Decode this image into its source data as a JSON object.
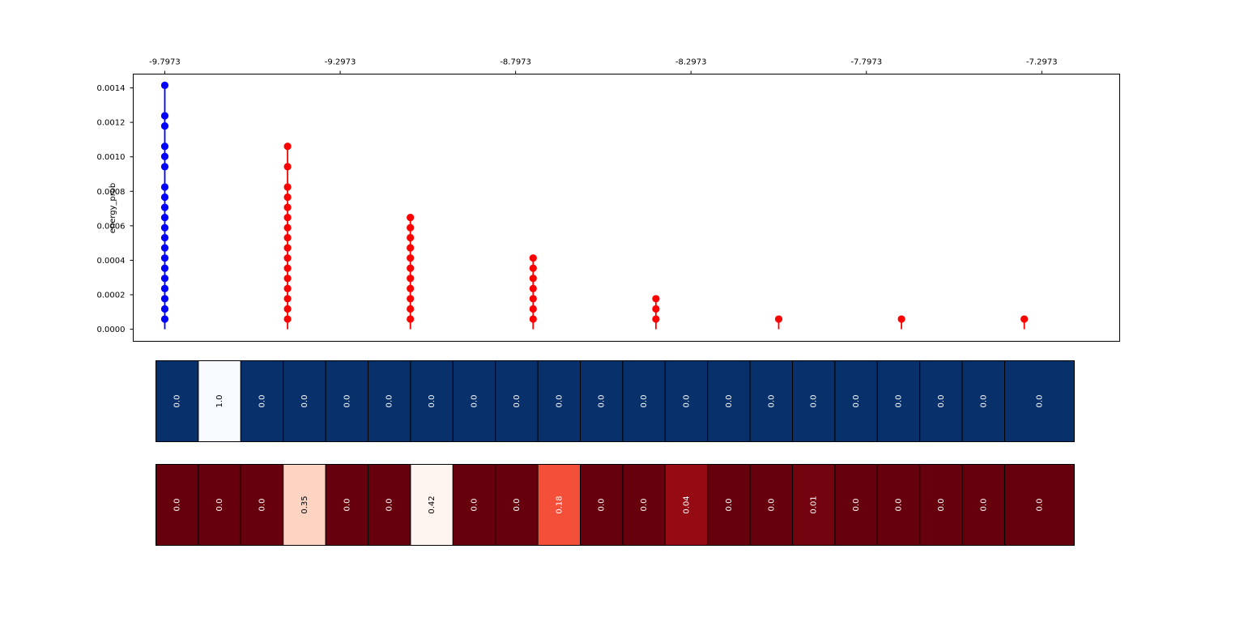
{
  "chart_data": [
    {
      "type": "scatter",
      "subtype": "stem",
      "ylabel": "energy_prob",
      "top_tick_labels": [
        "-9.7973",
        "-9.2973",
        "-8.7973",
        "-8.2973",
        "-7.7973",
        "-7.2973"
      ],
      "y_tick_labels": [
        "0.0000",
        "0.0002",
        "0.0004",
        "0.0006",
        "0.0008",
        "0.0010",
        "0.0012",
        "0.0014"
      ],
      "y_ticks": [
        0,
        0.0002,
        0.0004,
        0.0006,
        0.0008,
        0.001,
        0.0012,
        0.0014
      ],
      "x_ticks": [
        -9.7973,
        -9.2973,
        -8.7973,
        -8.2973,
        -7.7973,
        -7.2973
      ],
      "xlim": [
        -9.8873,
        -7.0753
      ],
      "ylim": [
        -7e-05,
        0.00148
      ],
      "series": [
        {
          "name": "stem-0",
          "color": "#0000ff",
          "x": -9.7973,
          "values": [
            5.89e-05,
            0.000118,
            0.000177,
            0.000236,
            0.000295,
            0.000354,
            0.000413,
            0.000472,
            0.000531,
            0.000589,
            0.000648,
            0.000707,
            0.000766,
            0.000825,
            0.000943,
            0.001002,
            0.001061,
            0.001179,
            0.001238,
            0.001415
          ]
        },
        {
          "name": "stem-1",
          "color": "#ff0000",
          "x": -9.4473,
          "values": [
            5.89e-05,
            0.000118,
            0.000177,
            0.000236,
            0.000295,
            0.000354,
            0.000413,
            0.000472,
            0.000531,
            0.000589,
            0.000648,
            0.000707,
            0.000766,
            0.000825,
            0.000943,
            0.001061
          ]
        },
        {
          "name": "stem-2",
          "color": "#ff0000",
          "x": -9.0973,
          "values": [
            5.89e-05,
            0.000118,
            0.000177,
            0.000236,
            0.000295,
            0.000354,
            0.000413,
            0.000472,
            0.000531,
            0.000589,
            0.000648
          ]
        },
        {
          "name": "stem-3",
          "color": "#ff0000",
          "x": -8.7473,
          "values": [
            5.89e-05,
            0.000118,
            0.000177,
            0.000236,
            0.000295,
            0.000354,
            0.000413
          ]
        },
        {
          "name": "stem-4",
          "color": "#ff0000",
          "x": -8.3973,
          "values": [
            5.89e-05,
            0.000118,
            0.000177
          ]
        },
        {
          "name": "stem-5",
          "color": "#ff0000",
          "x": -8.0473,
          "values": [
            5.89e-05
          ]
        },
        {
          "name": "stem-6",
          "color": "#ff0000",
          "x": -7.6973,
          "values": [
            5.89e-05
          ]
        },
        {
          "name": "stem-7",
          "color": "#ff0000",
          "x": -7.3473,
          "values": [
            5.89e-05
          ]
        }
      ]
    },
    {
      "type": "heatmap",
      "colormap": "Blues_r",
      "values": [
        0.0,
        1.0,
        0.0,
        0.0,
        0.0,
        0.0,
        0.0,
        0.0,
        0.0,
        0.0,
        0.0,
        0.0,
        0.0,
        0.0,
        0.0,
        0.0,
        0.0,
        0.0,
        0.0,
        0.0,
        0.0
      ],
      "labels": [
        "0.0",
        "1.0",
        "0.0",
        "0.0",
        "0.0",
        "0.0",
        "0.0",
        "0.0",
        "0.0",
        "0.0",
        "0.0",
        "0.0",
        "0.0",
        "0.0",
        "0.0",
        "0.0",
        "0.0",
        "0.0",
        "0.0",
        "0.0",
        "0.0"
      ]
    },
    {
      "type": "heatmap",
      "colormap": "Reds_r",
      "values": [
        0.0,
        0.0,
        0.0,
        0.35,
        0.0,
        0.0,
        0.42,
        0.0,
        0.0,
        0.18,
        0.0,
        0.0,
        0.04,
        0.0,
        0.0,
        0.01,
        0.0,
        0.0,
        0.0,
        0.0,
        0.0
      ],
      "labels": [
        "0.0",
        "0.0",
        "0.0",
        "0.35",
        "0.0",
        "0.0",
        "0.42",
        "0.0",
        "0.0",
        "0.18",
        "0.0",
        "0.0",
        "0.04",
        "0.0",
        "0.0",
        "0.01",
        "0.0",
        "0.0",
        "0.0",
        "0.0",
        "0.0"
      ]
    }
  ]
}
